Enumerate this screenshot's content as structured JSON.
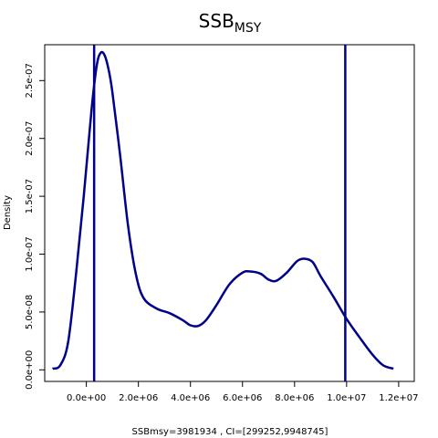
{
  "chart_data": {
    "type": "line",
    "title": "SSB",
    "title_subscript": "MSY",
    "xlabel": "SSBmsy=3981934 , CI=[299252,9948745]",
    "ylabel": "Density",
    "xlim": [
      -1600000,
      12600000
    ],
    "ylim": [
      -1e-08,
      2.81e-07
    ],
    "x_ticks": [
      0,
      2000000,
      4000000,
      6000000,
      8000000,
      10000000,
      12000000
    ],
    "x_tick_labels": [
      "0.0e+00",
      "2.0e+06",
      "4.0e+06",
      "6.0e+06",
      "8.0e+06",
      "1.0e+07",
      "1.2e+07"
    ],
    "y_ticks": [
      0,
      5e-08,
      1e-07,
      1.5e-07,
      2e-07,
      2.5e-07
    ],
    "y_tick_labels": [
      "0.0e+00",
      "5.0e-08",
      "1.0e-07",
      "1.5e-07",
      "2.0e-07",
      "2.5e-07"
    ],
    "grid": false,
    "series": [
      {
        "color": "#00008b",
        "x": [
          -1300000,
          -1000000,
          -700000,
          -400000,
          -100000,
          200000,
          400000,
          550000,
          700000,
          850000,
          1000000,
          1300000,
          1600000,
          1900000,
          2200000,
          2700000,
          3200000,
          3700000,
          4000000,
          4300000,
          4600000,
          5000000,
          5500000,
          6000000,
          6300000,
          6700000,
          7000000,
          7300000,
          7700000,
          8100000,
          8400000,
          8700000,
          9000000,
          9500000,
          10000000,
          10500000,
          11000000,
          11400000,
          11800000
        ],
        "y": [
          1e-09,
          4e-09,
          2.4e-08,
          8.2e-08,
          1.5e-07,
          2.25e-07,
          2.63e-07,
          2.74e-07,
          2.72e-07,
          2.6e-07,
          2.4e-07,
          1.85e-07,
          1.25e-07,
          8.3e-08,
          6.2e-08,
          5.3e-08,
          4.9e-08,
          4.3e-08,
          3.85e-08,
          3.8e-08,
          4.3e-08,
          5.6e-08,
          7.4e-08,
          8.4e-08,
          8.5e-08,
          8.3e-08,
          7.8e-08,
          7.7e-08,
          8.4e-08,
          9.4e-08,
          9.6e-08,
          9.3e-08,
          8.1e-08,
          6.3e-08,
          4.4e-08,
          2.8e-08,
          1.3e-08,
          4e-09,
          1e-09
        ]
      }
    ],
    "vertical_lines": [
      {
        "x": 299252,
        "color": "#00008b"
      },
      {
        "x": 9948745,
        "color": "#00008b"
      }
    ]
  }
}
